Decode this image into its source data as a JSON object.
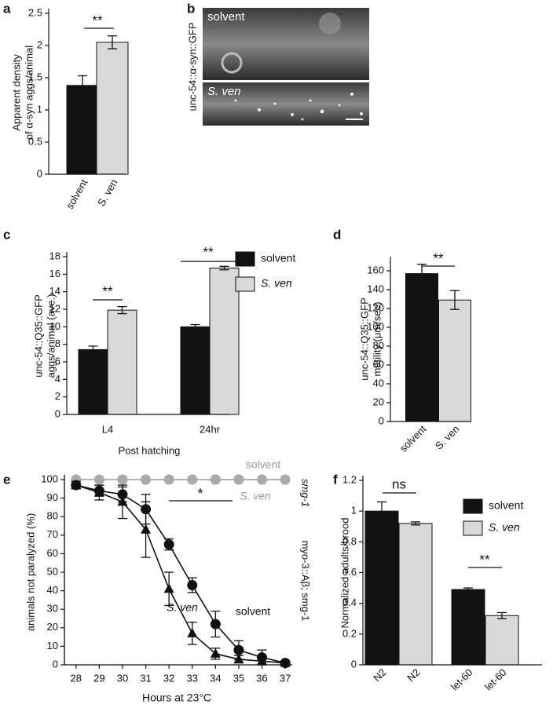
{
  "chart_data": [
    {
      "type": "bar",
      "panel": "a",
      "categories": [
        "solvent",
        "S. ven"
      ],
      "values": [
        1.38,
        2.05
      ],
      "errors": [
        0.15,
        0.1
      ],
      "colors": [
        "#111111",
        "#d9d9d9"
      ],
      "ylim": [
        0,
        2.5
      ],
      "yticks": [
        0,
        0.5,
        1,
        1.5,
        2,
        2.5
      ],
      "ylabel": [
        "Apparent density",
        "of α-syn aggs/animal"
      ],
      "annotations": [
        "**"
      ]
    },
    {
      "type": "image",
      "panel": "b",
      "labels": [
        "solvent",
        "S. ven"
      ],
      "ylabel": "unc-54::α-syn::GFP"
    },
    {
      "type": "bar",
      "panel": "c",
      "categories": [
        "L4",
        "24hr"
      ],
      "series": [
        {
          "name": "solvent",
          "color": "#111111",
          "values": [
            7.4,
            10
          ],
          "errors": [
            0.4,
            0.25
          ]
        },
        {
          "name": "S. ven",
          "color": "#d9d9d9",
          "values": [
            11.9,
            16.7
          ],
          "errors": [
            0.4,
            0.2
          ]
        }
      ],
      "ylim": [
        0,
        18
      ],
      "yticks": [
        0,
        2,
        4,
        6,
        8,
        10,
        12,
        14,
        16,
        18
      ],
      "ylabel": [
        "unc-54::Q35::GFP",
        "aggs/animal (ave.)"
      ],
      "xlabel": "Post hatching",
      "annotations": [
        "**",
        "**"
      ]
    },
    {
      "type": "bar",
      "panel": "d",
      "categories": [
        "solvent",
        "S. ven"
      ],
      "values": [
        157,
        129
      ],
      "errors": [
        10,
        10
      ],
      "colors": [
        "#111111",
        "#d9d9d9"
      ],
      "ylim": [
        0,
        170
      ],
      "yticks": [
        0,
        20,
        40,
        60,
        80,
        100,
        120,
        140,
        160
      ],
      "ylabel": [
        "unc-54::Q35::GFP",
        "motility (μm/sec)"
      ],
      "annotations": [
        "**"
      ]
    },
    {
      "type": "line",
      "panel": "e",
      "x": [
        28,
        29,
        30,
        31,
        32,
        33,
        34,
        35,
        36,
        37
      ],
      "series": [
        {
          "name": "solvent",
          "color": "#aaaaaa",
          "marker": "circle",
          "values": [
            100,
            100,
            100,
            100,
            100,
            100,
            100,
            100,
            100,
            100
          ]
        },
        {
          "name": "S. ven",
          "color": "#aaaaaa",
          "marker": "circle",
          "values": [
            100,
            100,
            100,
            100,
            100,
            100,
            100,
            100,
            100,
            100
          ]
        },
        {
          "name": "S. ven",
          "color": "#111111",
          "marker": "triangle",
          "values": [
            97,
            93,
            88,
            73,
            41,
            17,
            6,
            3,
            2,
            1
          ],
          "errors": [
            2,
            4,
            9,
            15,
            9,
            6,
            3,
            2,
            2,
            1
          ]
        },
        {
          "name": "solvent",
          "color": "#111111",
          "marker": "circle",
          "values": [
            97,
            94,
            92,
            84,
            65,
            43,
            22,
            8,
            4,
            1
          ],
          "errors": [
            2,
            3,
            4,
            8,
            3,
            4,
            7,
            5,
            4,
            1
          ]
        }
      ],
      "xlim": [
        27.5,
        37.3
      ],
      "xticks": [
        28,
        29,
        30,
        31,
        32,
        33,
        34,
        35,
        36,
        37
      ],
      "ylim": [
        0,
        100
      ],
      "yticks": [
        0,
        10,
        20,
        30,
        40,
        50,
        60,
        70,
        80,
        90,
        100
      ],
      "ylabel": "animals not paralyzed (%)",
      "xlabel": "Hours at 23°C",
      "annotations": [
        "*",
        "smg-1",
        "myo-3::Aβ; smg-1"
      ]
    },
    {
      "type": "bar",
      "panel": "f",
      "categories": [
        "N2",
        "N2",
        "let-60",
        "let-60"
      ],
      "series": [
        {
          "name": "solvent",
          "color": "#111111",
          "values": [
            1.0,
            null,
            0.49,
            null
          ],
          "errors": [
            0.06,
            null,
            0.01,
            null
          ]
        },
        {
          "name": "S. ven",
          "color": "#d9d9d9",
          "values": [
            null,
            0.92,
            null,
            0.32
          ],
          "errors": [
            null,
            0.01,
            null,
            0.02
          ]
        }
      ],
      "ylim": [
        0,
        1.2
      ],
      "yticks": [
        0,
        0.2,
        0.4,
        0.6,
        0.8,
        1,
        1.2
      ],
      "ylabel": "Normalized adults/brood",
      "annotations": [
        "ns",
        "**"
      ]
    }
  ]
}
